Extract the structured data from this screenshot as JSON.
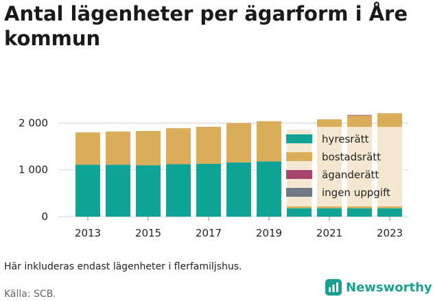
{
  "title": "Antal lägenheter per ägarform i Åre kommun",
  "note": "Här inkluderas endast lägenheter i flerfamiljshus.",
  "source": "Källa: SCB.",
  "brand": {
    "name": "Newsworthy",
    "color": "#1aa092"
  },
  "chart_data": {
    "type": "bar",
    "stacked": true,
    "categories": [
      "2013",
      "2014",
      "2015",
      "2016",
      "2017",
      "2018",
      "2019",
      "2020",
      "2021",
      "2022",
      "2023"
    ],
    "xticks": [
      "2013",
      "2015",
      "2017",
      "2019",
      "2021",
      "2023"
    ],
    "yticks": [
      "0",
      "1 000",
      "2 000"
    ],
    "ylim": [
      0,
      2300
    ],
    "grid": true,
    "legend_position": "inside-right",
    "series": [
      {
        "name": "hyresrätt",
        "color": "#0fa397",
        "values": [
          1110,
          1110,
          1100,
          1120,
          1130,
          1160,
          1180,
          180,
          180,
          180,
          180
        ]
      },
      {
        "name": "bostadsrätt",
        "color": "#dbad5b",
        "values": [
          690,
          710,
          730,
          770,
          790,
          840,
          860,
          1680,
          1900,
          1980,
          2030
        ]
      },
      {
        "name": "äganderätt",
        "color": "#a8436f",
        "values": [
          0,
          0,
          0,
          0,
          0,
          0,
          0,
          0,
          0,
          10,
          0
        ]
      },
      {
        "name": "ingen uppgift",
        "color": "#707a84",
        "values": [
          0,
          0,
          0,
          0,
          0,
          0,
          0,
          0,
          0,
          5,
          0
        ]
      }
    ]
  }
}
